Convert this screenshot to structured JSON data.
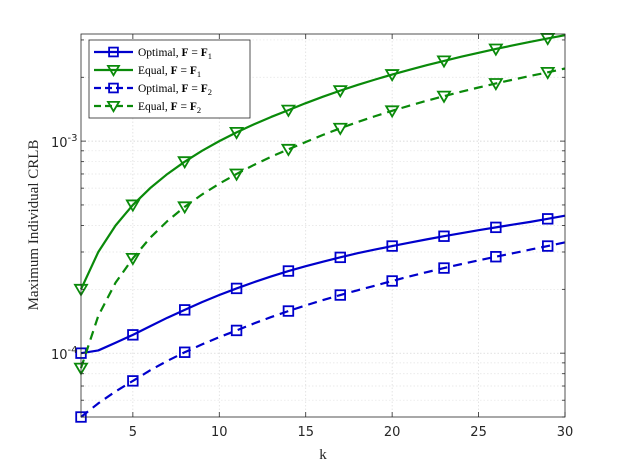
{
  "chart_data": {
    "type": "line",
    "xlabel": "k",
    "ylabel": "Maximum Individual CRLB",
    "xlim": [
      2,
      30
    ],
    "ylim": [
      5e-05,
      0.0032
    ],
    "yscale": "log",
    "grid": true,
    "x_ticks": [
      5,
      10,
      15,
      20,
      25,
      30
    ],
    "y_tick_labels": [
      {
        "value": 0.0001,
        "base": "10",
        "exp": "-4"
      },
      {
        "value": 0.001,
        "base": "10",
        "exp": "-3"
      }
    ],
    "legend_position": "top-left",
    "series": [
      {
        "name": "Optimal, F = F1",
        "label_parts": {
          "prefix": "Optimal, ",
          "lhs": "F",
          "rhs": "F",
          "sub": "1"
        },
        "color": "#0000cc",
        "line": "solid",
        "marker": "square",
        "x": [
          2,
          3,
          4,
          5,
          6,
          7,
          8,
          9,
          10,
          11,
          12,
          13,
          14,
          15,
          16,
          17,
          18,
          19,
          20,
          21,
          22,
          23,
          24,
          25,
          26,
          27,
          28,
          29,
          30
        ],
        "y": [
          0.0001,
          0.000103,
          0.000112,
          0.000122,
          0.000134,
          0.000147,
          0.00016,
          0.000174,
          0.000188,
          0.000202,
          0.000216,
          0.00023,
          0.000244,
          0.000257,
          0.00027,
          0.000283,
          0.000296,
          0.000308,
          0.00032,
          0.000332,
          0.000344,
          0.000356,
          0.000368,
          0.00038,
          0.000392,
          0.000404,
          0.000416,
          0.00043,
          0.000445
        ],
        "marker_x": [
          2,
          5,
          8,
          11,
          14,
          17,
          20,
          23,
          26,
          29
        ]
      },
      {
        "name": "Equal, F = F1",
        "label_parts": {
          "prefix": "Equal, ",
          "lhs": "F",
          "rhs": "F",
          "sub": "1"
        },
        "color": "#0a8a0a",
        "line": "solid",
        "marker": "triangle-down",
        "x": [
          2,
          3,
          4,
          5,
          6,
          7,
          8,
          9,
          10,
          11,
          12,
          13,
          14,
          15,
          16,
          17,
          18,
          19,
          20,
          21,
          22,
          23,
          24,
          25,
          26,
          27,
          28,
          29,
          30
        ],
        "y": [
          0.0002,
          0.0003,
          0.0004,
          0.0005,
          0.0006,
          0.0007,
          0.0008,
          0.0009,
          0.001,
          0.0011,
          0.0012,
          0.0013,
          0.0014,
          0.00151,
          0.00162,
          0.00173,
          0.00184,
          0.00195,
          0.00206,
          0.00217,
          0.00228,
          0.00239,
          0.0025,
          0.00261,
          0.00272,
          0.00283,
          0.00294,
          0.00305,
          0.00316
        ],
        "marker_x": [
          2,
          5,
          8,
          11,
          14,
          17,
          20,
          23,
          26,
          29
        ]
      },
      {
        "name": "Optimal, F = F2",
        "label_parts": {
          "prefix": "Optimal, ",
          "lhs": "F",
          "rhs": "F",
          "sub": "2"
        },
        "color": "#0000cc",
        "line": "dashed",
        "marker": "square",
        "x": [
          2,
          3,
          4,
          5,
          6,
          7,
          8,
          9,
          10,
          11,
          12,
          13,
          14,
          15,
          16,
          17,
          18,
          19,
          20,
          21,
          22,
          23,
          24,
          25,
          26,
          27,
          28,
          29,
          30
        ],
        "y": [
          5e-05,
          5.8e-05,
          6.6e-05,
          7.4e-05,
          8.3e-05,
          9.2e-05,
          0.000101,
          0.00011,
          0.000119,
          0.000128,
          0.000138,
          0.000148,
          0.000158,
          0.000168,
          0.000178,
          0.000188,
          0.000198,
          0.000208,
          0.000219,
          0.00023,
          0.000241,
          0.000252,
          0.000263,
          0.000274,
          0.000285,
          0.000296,
          0.000308,
          0.00032,
          0.000333
        ],
        "marker_x": [
          2,
          5,
          8,
          11,
          14,
          17,
          20,
          23,
          26,
          29
        ]
      },
      {
        "name": "Equal, F = F2",
        "label_parts": {
          "prefix": "Equal, ",
          "lhs": "F",
          "rhs": "F",
          "sub": "2"
        },
        "color": "#0a8a0a",
        "line": "dashed",
        "marker": "triangle-down",
        "x": [
          2,
          3,
          4,
          5,
          6,
          7,
          8,
          9,
          10,
          11,
          12,
          13,
          14,
          15,
          16,
          17,
          18,
          19,
          20,
          21,
          22,
          23,
          24,
          25,
          26,
          27,
          28,
          29,
          30
        ],
        "y": [
          8.5e-05,
          0.00015,
          0.000215,
          0.00028,
          0.00035,
          0.00042,
          0.00049,
          0.00056,
          0.00063,
          0.0007,
          0.000772,
          0.000844,
          0.000915,
          0.00099,
          0.00107,
          0.00115,
          0.00123,
          0.00131,
          0.00139,
          0.00147,
          0.00155,
          0.00163,
          0.00171,
          0.00179,
          0.00187,
          0.00195,
          0.00203,
          0.00211,
          0.0022
        ],
        "marker_x": [
          2,
          5,
          8,
          11,
          14,
          17,
          20,
          23,
          26,
          29
        ]
      }
    ]
  }
}
